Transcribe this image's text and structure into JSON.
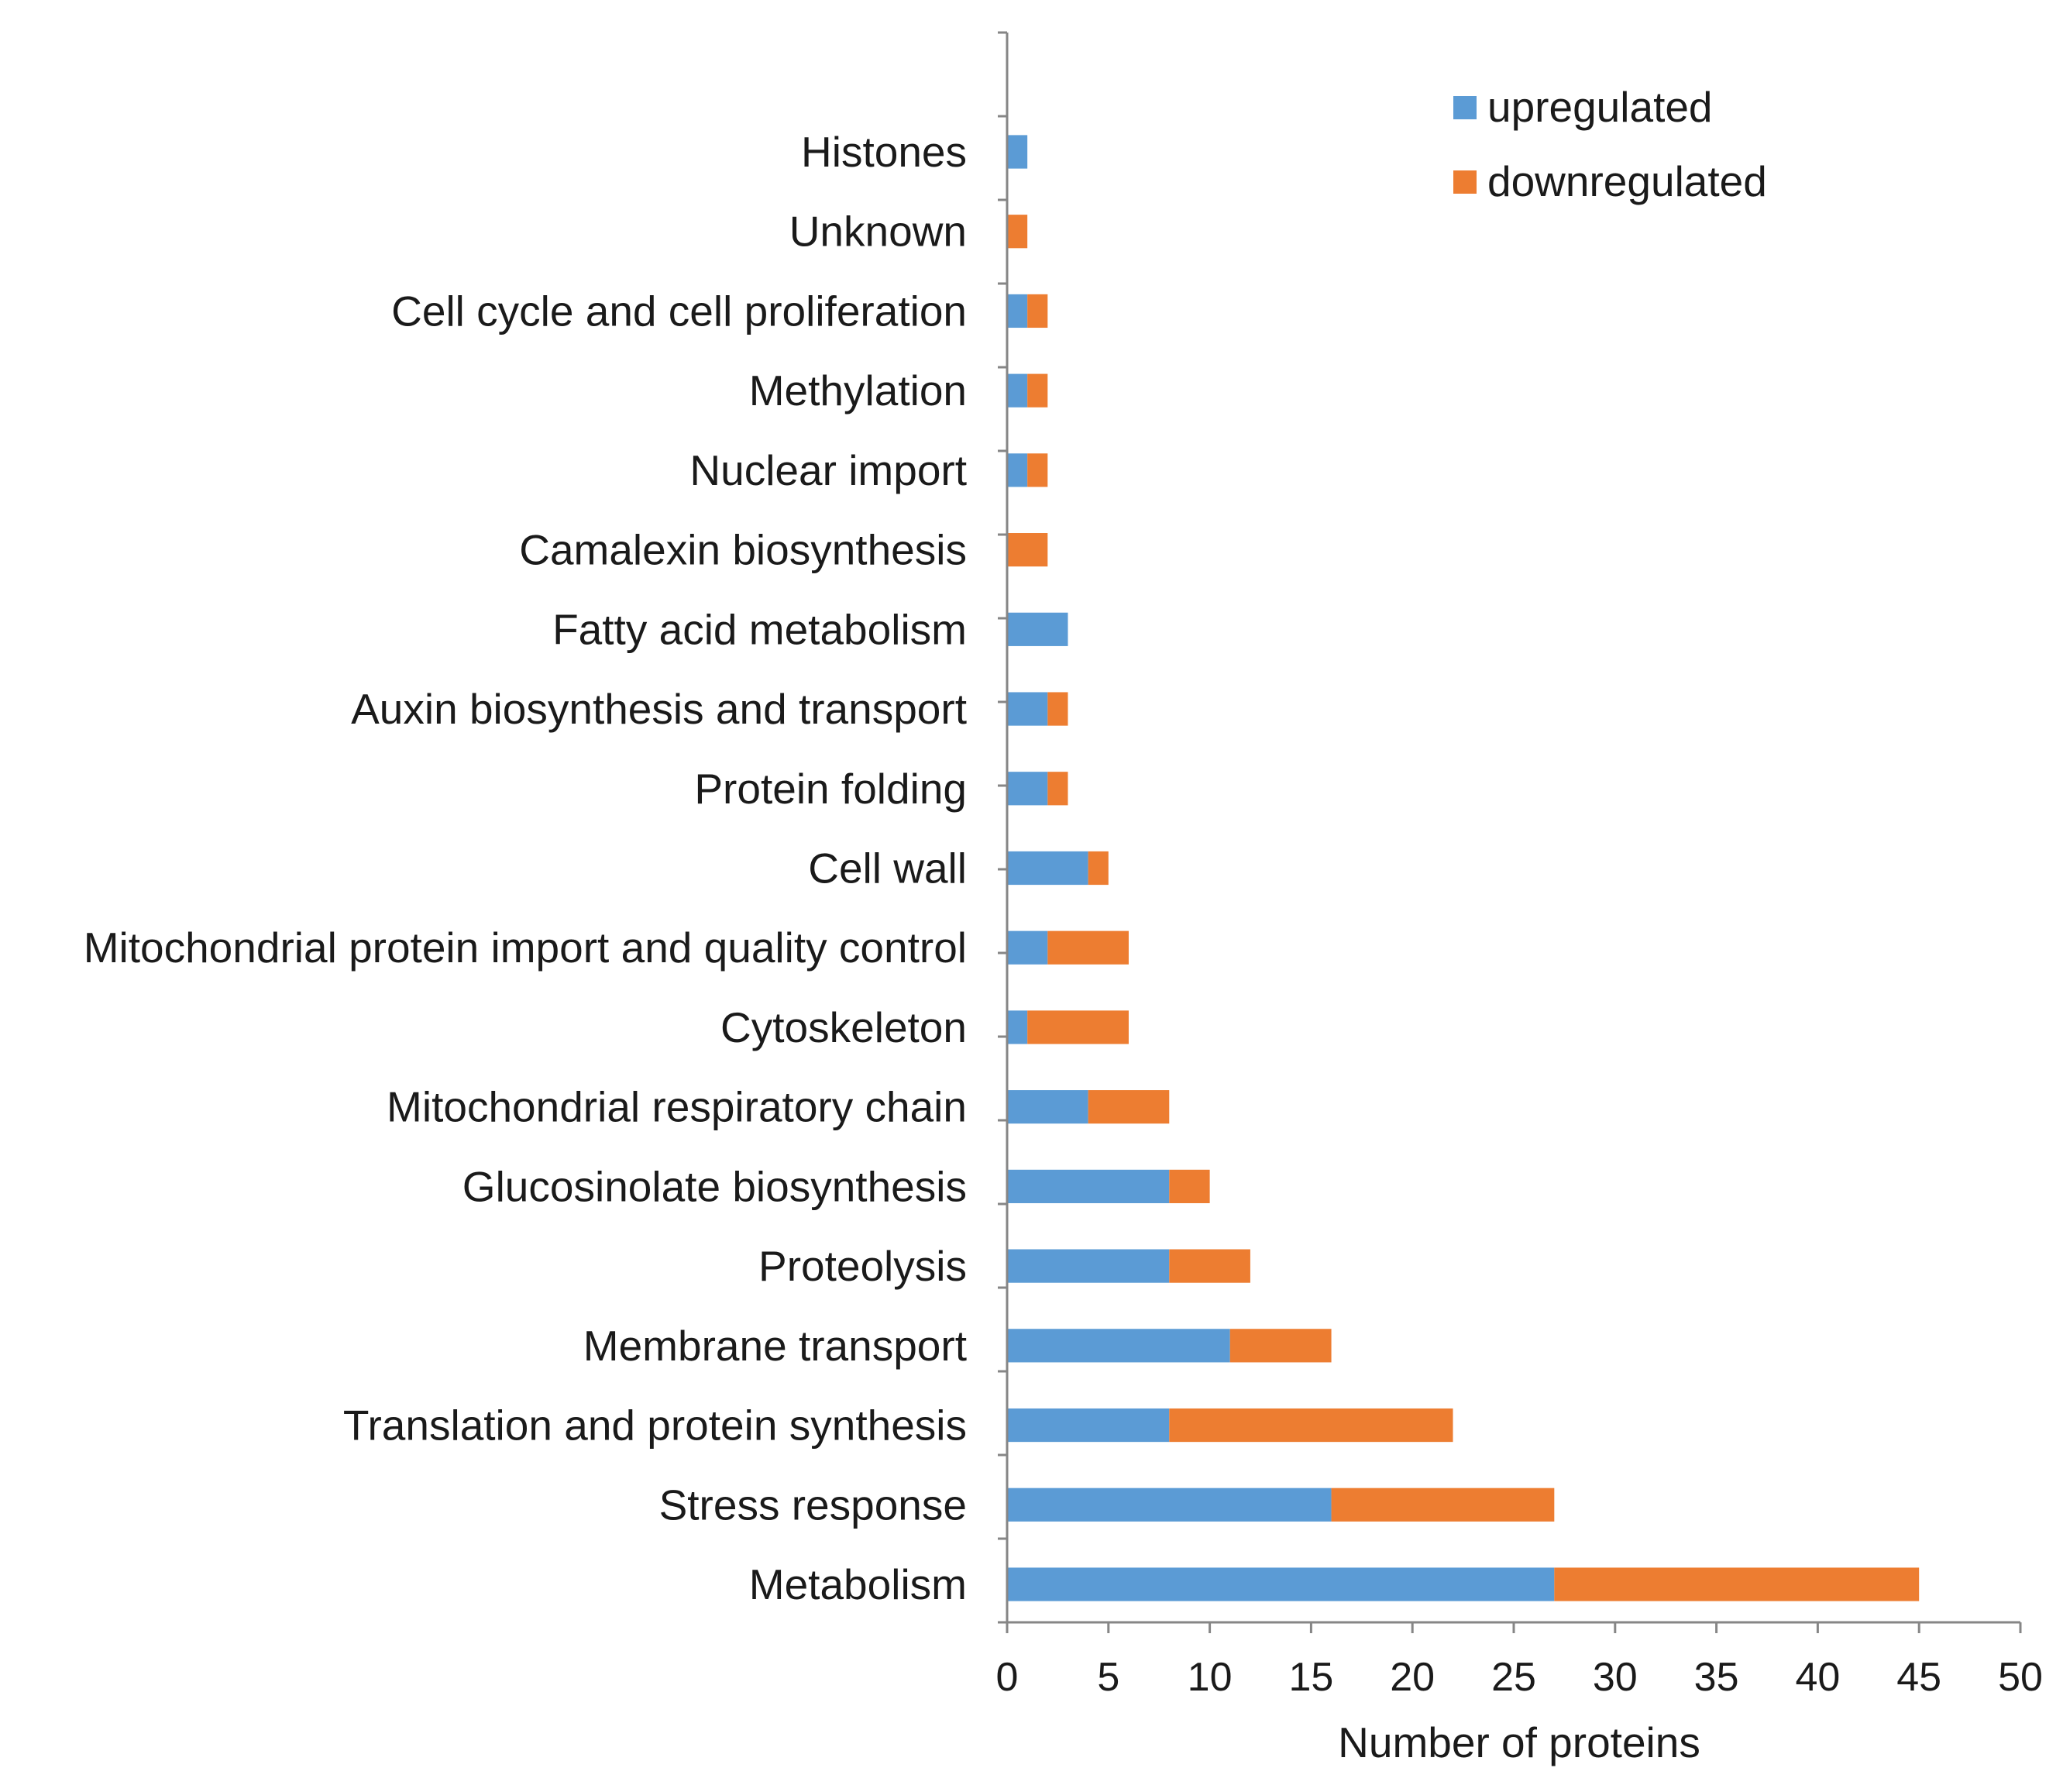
{
  "chart_data": {
    "type": "bar",
    "orientation": "horizontal",
    "stacked": true,
    "title": "",
    "xlabel": "Number of proteins",
    "ylabel": "",
    "xlim": [
      0,
      50
    ],
    "x_ticks": [
      0,
      5,
      10,
      15,
      20,
      25,
      30,
      35,
      40,
      45,
      50
    ],
    "grid": false,
    "legend_position": "top-right",
    "categories": [
      "Histones",
      "Unknown",
      "Cell cycle and cell proliferation",
      "Methylation",
      "Nuclear import",
      "Camalexin biosynthesis",
      "Fatty acid metabolism",
      "Auxin biosynthesis and transport",
      "Protein folding",
      "Cell wall",
      "Mitochondrial protein import and quality control",
      "Cytoskeleton",
      "Mitochondrial respiratory chain",
      "Glucosinolate biosynthesis",
      "Proteolysis",
      "Membrane transport",
      "Translation and protein synthesis",
      "Stress response",
      "Metabolism"
    ],
    "series": [
      {
        "name": "upregulated",
        "color": "#5B9BD5",
        "values": [
          1,
          0,
          1,
          1,
          1,
          0,
          3,
          2,
          2,
          4,
          2,
          1,
          4,
          8,
          8,
          11,
          8,
          16,
          27
        ]
      },
      {
        "name": "downregulated",
        "color": "#ED7D31",
        "values": [
          0,
          1,
          1,
          1,
          1,
          2,
          0,
          1,
          1,
          1,
          4,
          5,
          4,
          2,
          4,
          5,
          14,
          11,
          18
        ]
      }
    ]
  }
}
